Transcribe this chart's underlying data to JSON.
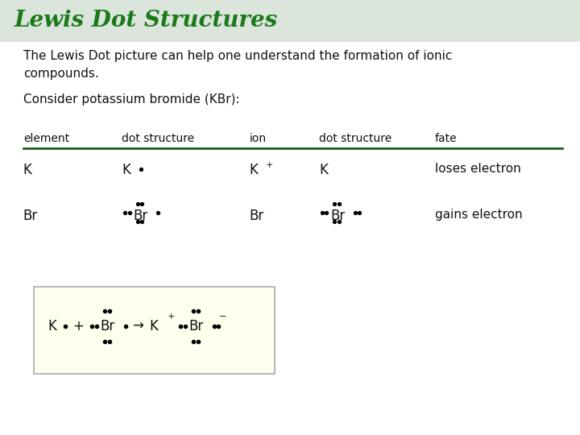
{
  "title": "Lewis Dot Structures",
  "title_color": "#1a7a1a",
  "title_bg_color": "#dce5dc",
  "main_bg_color": "#ffffff",
  "intro_text1": "The Lewis Dot picture can help one understand the formation of ionic",
  "intro_text2": "compounds.",
  "consider_text": "Consider potassium bromide (KBr):",
  "header_row": [
    "element",
    "dot structure",
    "ion",
    "dot structure",
    "fate"
  ],
  "header_line_color": "#1a5c1a",
  "box_bg_color": "#ffffee",
  "box_border_color": "#aaaaaa",
  "text_color": "#111111"
}
